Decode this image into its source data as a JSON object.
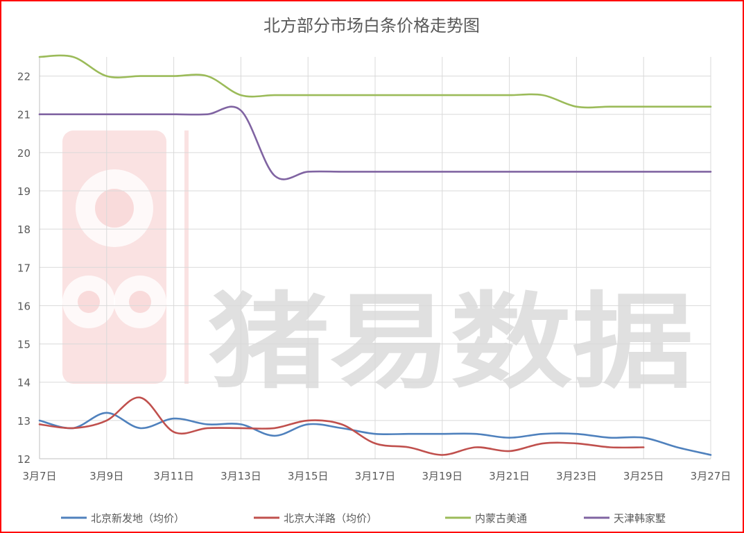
{
  "chart_data": {
    "type": "line",
    "title": "北方部分市场白条价格走势图",
    "xlabel": "",
    "ylabel": "",
    "x": [
      "3月7日",
      "3月8日",
      "3月9日",
      "3月10日",
      "3月11日",
      "3月12日",
      "3月13日",
      "3月14日",
      "3月15日",
      "3月16日",
      "3月17日",
      "3月18日",
      "3月19日",
      "3月20日",
      "3月21日",
      "3月22日",
      "3月23日",
      "3月24日",
      "3月25日",
      "3月26日",
      "3月27日"
    ],
    "x_tick_labels": [
      "3月7日",
      "3月9日",
      "3月11日",
      "3月13日",
      "3月15日",
      "3月17日",
      "3月19日",
      "3月21日",
      "3月23日",
      "3月25日",
      "3月27日"
    ],
    "ylim": [
      12,
      22.5
    ],
    "y_ticks": [
      12,
      13,
      14,
      15,
      16,
      17,
      18,
      19,
      20,
      21,
      22
    ],
    "grid": "both",
    "legend_position": "bottom",
    "series": [
      {
        "name": "北京新发地（均价）",
        "color": "#4f81bd",
        "values": [
          13.0,
          12.8,
          13.2,
          12.8,
          13.05,
          12.9,
          12.9,
          12.6,
          12.9,
          12.8,
          12.65,
          12.65,
          12.65,
          12.65,
          12.55,
          12.65,
          12.65,
          12.55,
          12.55,
          12.3,
          12.1
        ]
      },
      {
        "name": "北京大洋路（均价）",
        "color": "#c0504d",
        "values": [
          12.9,
          12.8,
          13.0,
          13.6,
          12.7,
          12.8,
          12.8,
          12.8,
          13.0,
          12.9,
          12.4,
          12.3,
          12.1,
          12.3,
          12.2,
          12.4,
          12.4,
          12.3,
          12.3,
          null,
          null
        ]
      },
      {
        "name": "内蒙古美通",
        "color": "#9bbb59",
        "values": [
          22.5,
          22.5,
          22.0,
          22.0,
          22.0,
          22.0,
          21.5,
          21.5,
          21.5,
          21.5,
          21.5,
          21.5,
          21.5,
          21.5,
          21.5,
          21.5,
          21.2,
          21.2,
          21.2,
          21.2,
          21.2
        ]
      },
      {
        "name": "天津韩家墅",
        "color": "#8064a2",
        "values": [
          21.0,
          21.0,
          21.0,
          21.0,
          21.0,
          21.0,
          21.1,
          19.4,
          19.5,
          19.5,
          19.5,
          19.5,
          19.5,
          19.5,
          19.5,
          19.5,
          19.5,
          19.5,
          19.5,
          19.5,
          19.5
        ]
      }
    ]
  },
  "watermark": {
    "text": "猪易数据",
    "logo": "pig-logo-icon",
    "color": "#c8c8c8",
    "logo_color": "#f4c4c4"
  }
}
